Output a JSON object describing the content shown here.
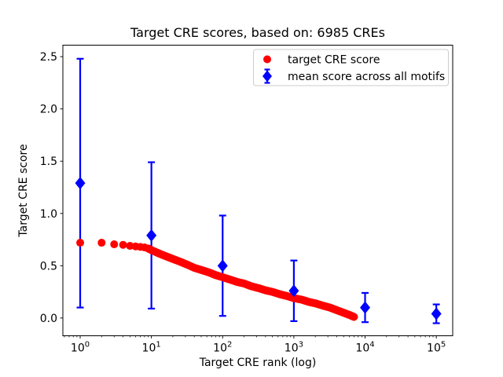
{
  "chart_data": {
    "type": "scatter",
    "title": "Target CRE scores, based on: 6985 CREs",
    "xlabel": "Target CRE rank (log)",
    "ylabel": "Target CRE score",
    "x_scale": "log10",
    "grid": false,
    "n_cres": 6985,
    "xlim_log10": [
      -0.243,
      5.23
    ],
    "ylim": [
      -0.17,
      2.61
    ],
    "y_ticks": [
      0.0,
      0.5,
      1.0,
      1.5,
      2.0,
      2.5
    ],
    "x_major_tick_exponents": [
      0,
      1,
      2,
      3,
      4,
      5
    ],
    "legend_position": "upper right",
    "series": [
      {
        "name": "target CRE score",
        "marker": "circle",
        "color": "#ff0000",
        "n_points": 6985,
        "samples": [
          [
            1,
            0.72
          ],
          [
            2,
            0.72
          ],
          [
            3,
            0.705
          ],
          [
            4,
            0.7
          ],
          [
            5,
            0.69
          ],
          [
            6,
            0.685
          ],
          [
            7,
            0.68
          ],
          [
            8,
            0.675
          ],
          [
            9,
            0.665
          ],
          [
            10,
            0.65
          ],
          [
            13,
            0.615
          ],
          [
            16,
            0.59
          ],
          [
            20,
            0.565
          ],
          [
            25,
            0.54
          ],
          [
            32,
            0.51
          ],
          [
            40,
            0.48
          ],
          [
            50,
            0.46
          ],
          [
            65,
            0.435
          ],
          [
            80,
            0.41
          ],
          [
            100,
            0.39
          ],
          [
            130,
            0.365
          ],
          [
            160,
            0.345
          ],
          [
            200,
            0.33
          ],
          [
            250,
            0.305
          ],
          [
            320,
            0.285
          ],
          [
            400,
            0.265
          ],
          [
            500,
            0.25
          ],
          [
            650,
            0.225
          ],
          [
            800,
            0.21
          ],
          [
            1000,
            0.19
          ],
          [
            1300,
            0.175
          ],
          [
            1600,
            0.155
          ],
          [
            2000,
            0.14
          ],
          [
            2500,
            0.12
          ],
          [
            3200,
            0.1
          ],
          [
            4000,
            0.075
          ],
          [
            5000,
            0.05
          ],
          [
            6000,
            0.03
          ],
          [
            6985,
            0.01
          ]
        ]
      },
      {
        "name": "mean score across all motifs",
        "marker": "diamond",
        "color": "#0000ff",
        "points": [
          {
            "x": 1,
            "y": 1.29,
            "err": 1.19
          },
          {
            "x": 10,
            "y": 0.79,
            "err": 0.7
          },
          {
            "x": 100,
            "y": 0.5,
            "err": 0.48
          },
          {
            "x": 1000,
            "y": 0.26,
            "err": 0.29
          },
          {
            "x": 10000,
            "y": 0.1,
            "err": 0.14
          },
          {
            "x": 100000,
            "y": 0.04,
            "err": 0.09
          }
        ]
      }
    ],
    "colors": {
      "target_series": "#ff0000",
      "mean_series": "#0000ff",
      "spine": "#000000",
      "text": "#000000",
      "legend_border": "#cccccc",
      "background": "#ffffff"
    }
  }
}
